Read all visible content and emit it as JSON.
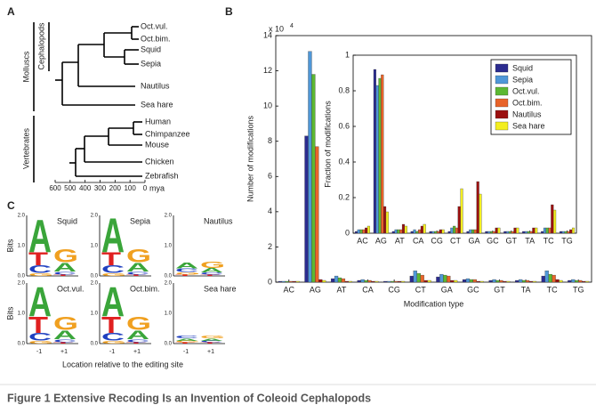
{
  "panel_a": {
    "label": "A",
    "molluscs_taxa": [
      "Oct.vul.",
      "Oct.bim.",
      "Squid",
      "Sepia",
      "Nautilus",
      "Sea hare"
    ],
    "vertebrate_taxa": [
      "Human",
      "Chimpanzee",
      "Mouse",
      "Chicken",
      "Zebrafish"
    ],
    "groups": {
      "molluscs": "Molluscs",
      "cephalopods": "Cephalopods",
      "vertebrates": "Vertebrates"
    },
    "time_ticks": [
      600,
      500,
      400,
      300,
      200,
      100,
      0
    ],
    "time_unit": "mya"
  },
  "panel_b_label": "B",
  "chart_data": [
    {
      "type": "bar",
      "categories": [
        "AC",
        "AG",
        "AT",
        "CA",
        "CG",
        "CT",
        "GA",
        "GC",
        "GT",
        "TA",
        "TC",
        "TG"
      ],
      "series": [
        {
          "name": "Squid",
          "color": "#2b2b8f",
          "values": [
            0.05,
            8.3,
            0.2,
            0.1,
            0.05,
            0.35,
            0.3,
            0.15,
            0.1,
            0.1,
            0.35,
            0.1
          ]
        },
        {
          "name": "Sepia",
          "color": "#4f97d8",
          "values": [
            0.05,
            13.1,
            0.35,
            0.15,
            0.05,
            0.65,
            0.45,
            0.2,
            0.15,
            0.15,
            0.65,
            0.15
          ]
        },
        {
          "name": "Oct.vul.",
          "color": "#5cb832",
          "values": [
            0.05,
            11.8,
            0.25,
            0.1,
            0.05,
            0.5,
            0.4,
            0.15,
            0.1,
            0.1,
            0.45,
            0.1
          ]
        },
        {
          "name": "Oct.bim.",
          "color": "#e8642a",
          "values": [
            0.05,
            7.7,
            0.2,
            0.1,
            0.05,
            0.4,
            0.35,
            0.15,
            0.1,
            0.1,
            0.4,
            0.1
          ]
        },
        {
          "name": "Nautilus",
          "color": "#9b1010",
          "values": [
            0.05,
            0.15,
            0.05,
            0.05,
            0.05,
            0.1,
            0.1,
            0.05,
            0.05,
            0.05,
            0.15,
            0.05
          ]
        },
        {
          "name": "Sea hare",
          "color": "#f3ee20",
          "values": [
            0.05,
            0.1,
            0.05,
            0.05,
            0.05,
            0.1,
            0.1,
            0.05,
            0.05,
            0.05,
            0.1,
            0.05
          ]
        }
      ],
      "ylim": [
        0,
        14
      ],
      "yticks": [
        0,
        2,
        4,
        6,
        8,
        10,
        12,
        14
      ],
      "ylabel": "Number of modifications",
      "xlabel": "Modification type",
      "axis_scale": {
        "base": "x 10",
        "exponent": "4"
      }
    },
    {
      "type": "bar",
      "categories": [
        "AC",
        "AG",
        "AT",
        "CA",
        "CG",
        "CT",
        "GA",
        "GC",
        "GT",
        "TA",
        "TC",
        "TG"
      ],
      "series": [
        {
          "name": "Squid",
          "color": "#2b2b8f",
          "values": [
            0.01,
            0.92,
            0.01,
            0.01,
            0.01,
            0.01,
            0.01,
            0.01,
            0.01,
            0.01,
            0.01,
            0.01
          ]
        },
        {
          "name": "Sepia",
          "color": "#4f97d8",
          "values": [
            0.02,
            0.83,
            0.02,
            0.02,
            0.01,
            0.03,
            0.02,
            0.01,
            0.01,
            0.01,
            0.03,
            0.01
          ]
        },
        {
          "name": "Oct.vul.",
          "color": "#5cb832",
          "values": [
            0.02,
            0.87,
            0.02,
            0.01,
            0.01,
            0.04,
            0.02,
            0.01,
            0.01,
            0.01,
            0.03,
            0.01
          ]
        },
        {
          "name": "Oct.bim.",
          "color": "#e8642a",
          "values": [
            0.02,
            0.89,
            0.02,
            0.02,
            0.01,
            0.03,
            0.02,
            0.01,
            0.01,
            0.01,
            0.03,
            0.01
          ]
        },
        {
          "name": "Nautilus",
          "color": "#9b1010",
          "values": [
            0.03,
            0.15,
            0.05,
            0.04,
            0.02,
            0.15,
            0.29,
            0.03,
            0.03,
            0.03,
            0.16,
            0.02
          ]
        },
        {
          "name": "Sea hare",
          "color": "#f3ee20",
          "values": [
            0.04,
            0.12,
            0.04,
            0.05,
            0.02,
            0.25,
            0.22,
            0.03,
            0.03,
            0.03,
            0.13,
            0.03
          ]
        }
      ],
      "ylim": [
        0,
        1
      ],
      "yticks": [
        0,
        0.2,
        0.4,
        0.6,
        0.8,
        1
      ],
      "ylabel": "Fraction of modifications",
      "legend": true,
      "legend_position": "upper right"
    }
  ],
  "panel_c": {
    "label": "C",
    "ylabel": "Bits",
    "yticks": [
      "2.0",
      "1.0",
      "0.0"
    ],
    "positions": [
      "-1",
      "+1"
    ],
    "xlabel": "Location relative to the editing site",
    "letter_colors": {
      "A": "#3aa53a",
      "T": "#e02020",
      "C": "#2040c0",
      "G": "#f0a020"
    },
    "logos": [
      {
        "name": "Squid",
        "stacks": [
          [
            {
              "letter": "A",
              "bits": 1.1
            },
            {
              "letter": "T",
              "bits": 0.45
            },
            {
              "letter": "C",
              "bits": 0.25
            },
            {
              "letter": "G",
              "bits": 0.1
            }
          ],
          [
            {
              "letter": "G",
              "bits": 0.45
            },
            {
              "letter": "A",
              "bits": 0.3
            },
            {
              "letter": "C",
              "bits": 0.1
            },
            {
              "letter": "T",
              "bits": 0.05
            }
          ]
        ]
      },
      {
        "name": "Sepia",
        "stacks": [
          [
            {
              "letter": "A",
              "bits": 1.15
            },
            {
              "letter": "T",
              "bits": 0.45
            },
            {
              "letter": "C",
              "bits": 0.25
            },
            {
              "letter": "G",
              "bits": 0.1
            }
          ],
          [
            {
              "letter": "G",
              "bits": 0.45
            },
            {
              "letter": "A",
              "bits": 0.3
            },
            {
              "letter": "C",
              "bits": 0.1
            },
            {
              "letter": "T",
              "bits": 0.05
            }
          ]
        ]
      },
      {
        "name": "Nautilus",
        "stacks": [
          [
            {
              "letter": "A",
              "bits": 0.2
            },
            {
              "letter": "C",
              "bits": 0.12
            },
            {
              "letter": "G",
              "bits": 0.08
            },
            {
              "letter": "T",
              "bits": 0.05
            }
          ],
          [
            {
              "letter": "G",
              "bits": 0.22
            },
            {
              "letter": "A",
              "bits": 0.15
            },
            {
              "letter": "C",
              "bits": 0.08
            },
            {
              "letter": "T",
              "bits": 0.04
            }
          ]
        ]
      },
      {
        "name": "Oct.vul.",
        "stacks": [
          [
            {
              "letter": "A",
              "bits": 1.0
            },
            {
              "letter": "T",
              "bits": 0.55
            },
            {
              "letter": "C",
              "bits": 0.25
            },
            {
              "letter": "G",
              "bits": 0.1
            }
          ],
          [
            {
              "letter": "G",
              "bits": 0.45
            },
            {
              "letter": "A",
              "bits": 0.3
            },
            {
              "letter": "C",
              "bits": 0.1
            },
            {
              "letter": "T",
              "bits": 0.05
            }
          ]
        ]
      },
      {
        "name": "Oct.bim.",
        "stacks": [
          [
            {
              "letter": "A",
              "bits": 1.0
            },
            {
              "letter": "T",
              "bits": 0.55
            },
            {
              "letter": "C",
              "bits": 0.25
            },
            {
              "letter": "G",
              "bits": 0.1
            }
          ],
          [
            {
              "letter": "G",
              "bits": 0.45
            },
            {
              "letter": "A",
              "bits": 0.3
            },
            {
              "letter": "C",
              "bits": 0.1
            },
            {
              "letter": "T",
              "bits": 0.05
            }
          ]
        ]
      },
      {
        "name": "Sea hare",
        "stacks": [
          [
            {
              "letter": "C",
              "bits": 0.1
            },
            {
              "letter": "A",
              "bits": 0.08
            },
            {
              "letter": "G",
              "bits": 0.05
            },
            {
              "letter": "T",
              "bits": 0.04
            }
          ],
          [
            {
              "letter": "G",
              "bits": 0.1
            },
            {
              "letter": "A",
              "bits": 0.08
            },
            {
              "letter": "C",
              "bits": 0.05
            },
            {
              "letter": "T",
              "bits": 0.04
            }
          ]
        ]
      }
    ]
  },
  "caption": "Figure 1 Extensive Recoding Is an Invention of Coleoid Cephalopods"
}
